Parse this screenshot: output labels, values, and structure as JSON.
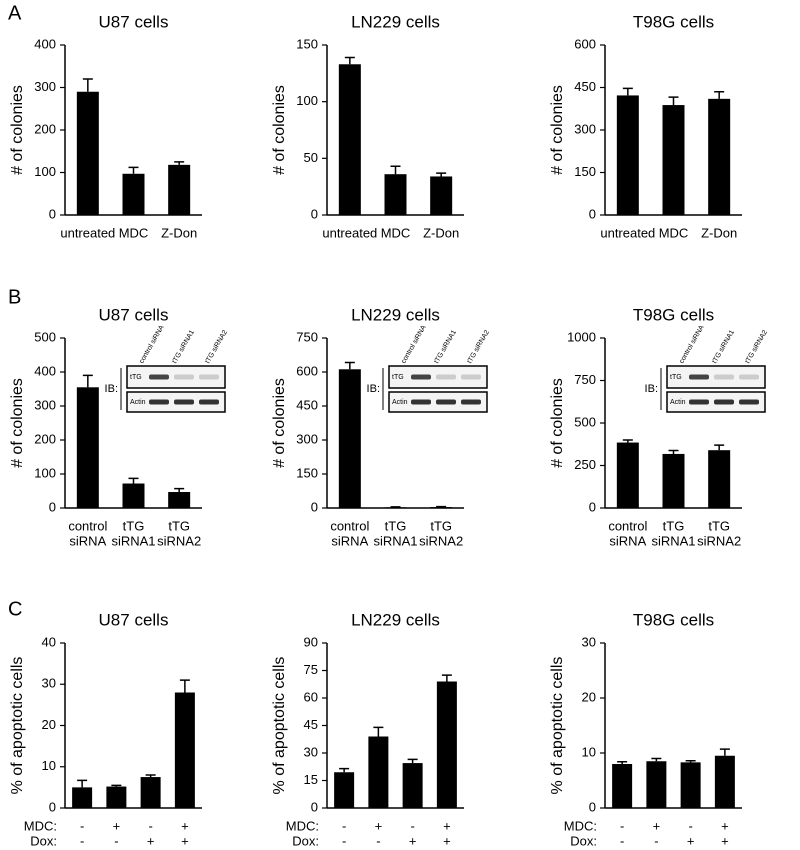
{
  "panel_labels": [
    "A",
    "B",
    "C"
  ],
  "chart_data": [
    {
      "type": "bar",
      "title": "U87 cells",
      "y_label": "# of colonies",
      "categories": [
        "untreated",
        "MDC",
        "Z-Don"
      ],
      "values": [
        290,
        97,
        118
      ],
      "errors": [
        30,
        15,
        7
      ],
      "color": "#000000",
      "ylim": [
        0,
        400
      ],
      "yticks": [
        0,
        100,
        200,
        300,
        400
      ]
    },
    {
      "type": "bar",
      "title": "LN229 cells",
      "y_label": "# of colonies",
      "categories": [
        "untreated",
        "MDC",
        "Z-Don"
      ],
      "values": [
        133,
        36,
        34
      ],
      "errors": [
        6,
        7,
        3
      ],
      "color": "#000000",
      "ylim": [
        0,
        150
      ],
      "yticks": [
        0,
        50,
        100,
        150
      ]
    },
    {
      "type": "bar",
      "title": "T98G cells",
      "y_label": "# of colonies",
      "categories": [
        "untreated",
        "MDC",
        "Z-Don"
      ],
      "values": [
        422,
        388,
        410
      ],
      "errors": [
        25,
        28,
        25
      ],
      "color": "#000000",
      "ylim": [
        0,
        600
      ],
      "yticks": [
        0,
        150,
        300,
        450,
        600
      ]
    },
    {
      "type": "bar",
      "title": "U87 cells",
      "y_label": "# of colonies",
      "categories": [
        [
          "control",
          "siRNA"
        ],
        [
          "tTG",
          "siRNA1"
        ],
        [
          "tTG",
          "siRNA2"
        ]
      ],
      "values": [
        355,
        72,
        47
      ],
      "errors": [
        35,
        15,
        10
      ],
      "color": "#000000",
      "ylim": [
        0,
        500
      ],
      "yticks": [
        0,
        100,
        200,
        300,
        400,
        500
      ],
      "inset": {
        "lanes": [
          "control siRNA",
          "tTG siRNA1",
          "tTG siRNA2"
        ],
        "label": "IB:",
        "rows": [
          "tTG",
          "Actin"
        ]
      }
    },
    {
      "type": "bar",
      "title": "LN229 cells",
      "y_label": "# of colonies",
      "categories": [
        [
          "control",
          "siRNA"
        ],
        [
          "tTG",
          "siRNA1"
        ],
        [
          "tTG",
          "siRNA2"
        ]
      ],
      "values": [
        612,
        3,
        4
      ],
      "errors": [
        30,
        2,
        2
      ],
      "color": "#000000",
      "ylim": [
        0,
        750
      ],
      "yticks": [
        0,
        150,
        300,
        450,
        600,
        750
      ],
      "inset": {
        "lanes": [
          "control siRNA",
          "tTG siRNA1",
          "tTG siRNA2"
        ],
        "label": "IB:",
        "rows": [
          "tTG",
          "Actin"
        ]
      }
    },
    {
      "type": "bar",
      "title": "T98G cells",
      "y_label": "# of colonies",
      "categories": [
        [
          "control",
          "siRNA"
        ],
        [
          "tTG",
          "siRNA1"
        ],
        [
          "tTG",
          "siRNA2"
        ]
      ],
      "values": [
        385,
        318,
        340
      ],
      "errors": [
        15,
        20,
        30
      ],
      "color": "#000000",
      "ylim": [
        0,
        1000
      ],
      "yticks": [
        0,
        250,
        500,
        750,
        1000
      ],
      "inset": {
        "lanes": [
          "control siRNA",
          "tTG siRNA1",
          "tTG siRNA2"
        ],
        "label": "IB:",
        "rows": [
          "tTG",
          "Actin"
        ]
      }
    },
    {
      "type": "bar",
      "title": "U87 cells",
      "y_label": "% of apoptotic cells",
      "row_labels": [
        "MDC:",
        "Dox:"
      ],
      "categories": [
        [
          "-",
          "-"
        ],
        [
          "+",
          "-"
        ],
        [
          "-",
          "+"
        ],
        [
          "+",
          "+"
        ]
      ],
      "values": [
        5,
        5.2,
        7.5,
        28
      ],
      "errors": [
        1.7,
        0.3,
        0.5,
        3
      ],
      "color": "#000000",
      "ylim": [
        0,
        40
      ],
      "yticks": [
        0,
        10,
        20,
        30,
        40
      ]
    },
    {
      "type": "bar",
      "title": "LN229 cells",
      "y_label": "% of apoptotic cells",
      "row_labels": [
        "MDC:",
        "Dox:"
      ],
      "categories": [
        [
          "-",
          "-"
        ],
        [
          "+",
          "-"
        ],
        [
          "-",
          "+"
        ],
        [
          "+",
          "+"
        ]
      ],
      "values": [
        19.5,
        39,
        24.5,
        69
      ],
      "errors": [
        2,
        5,
        2,
        3.5
      ],
      "color": "#000000",
      "ylim": [
        0,
        90
      ],
      "yticks": [
        0,
        15,
        30,
        45,
        60,
        75,
        90
      ]
    },
    {
      "type": "bar",
      "title": "T98G cells",
      "y_label": "% of apoptotic cells",
      "row_labels": [
        "MDC:",
        "Dox:"
      ],
      "categories": [
        [
          "-",
          "-"
        ],
        [
          "+",
          "-"
        ],
        [
          "-",
          "+"
        ],
        [
          "+",
          "+"
        ]
      ],
      "values": [
        8,
        8.5,
        8.3,
        9.5
      ],
      "errors": [
        0.4,
        0.5,
        0.3,
        1.2
      ],
      "color": "#000000",
      "ylim": [
        0,
        30
      ],
      "yticks": [
        0,
        10,
        20,
        30
      ]
    }
  ]
}
